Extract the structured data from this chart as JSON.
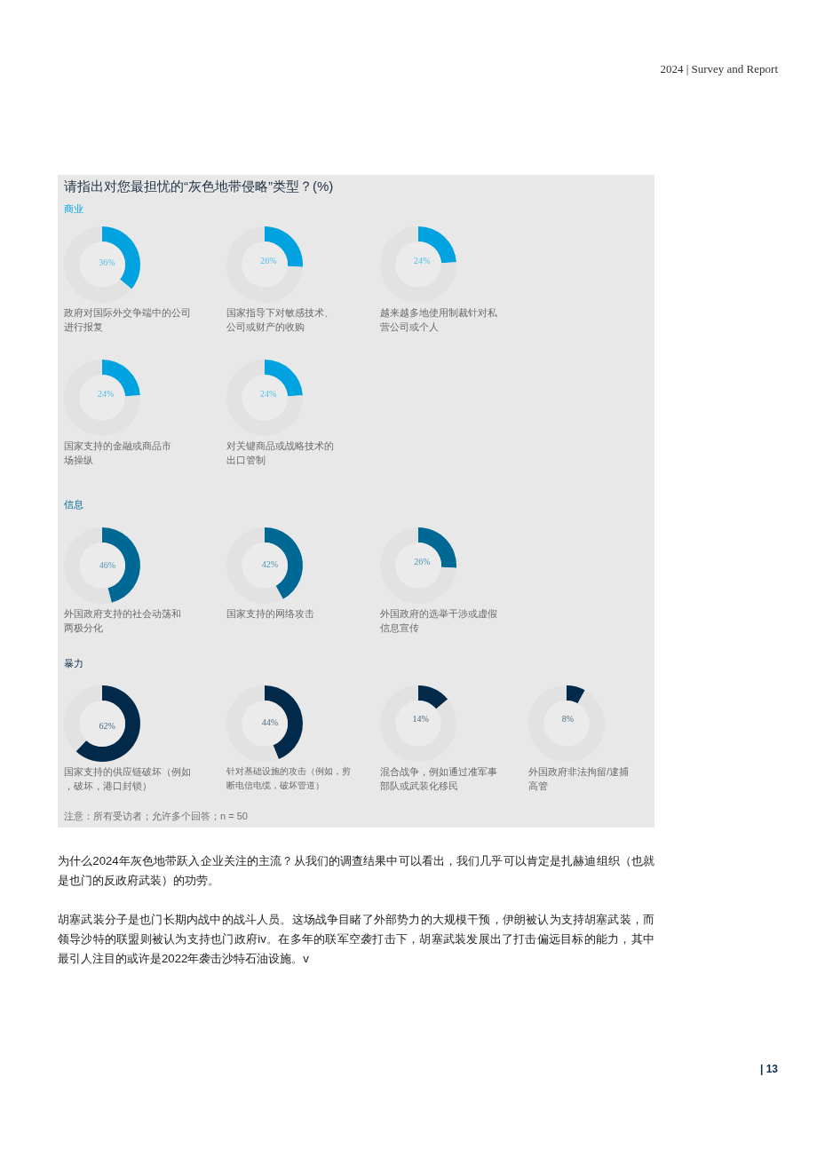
{
  "chart_data": [
    {
      "type": "other",
      "title": "请指出对您最担忧的“灰色地带侵略”类型？(%)",
      "annotations": [
        "2024 | Survey and Report",
        "商业",
        "信息",
        "暴力",
        "注意：所有受访者；允许多个回答；n = 50",
        "为什么2024年灰色地带跃入企业关注的主流？从我们的调查结果中可以看出，我们几乎可以肯定是扎赫迪组织（也就是也门的反政府武装）的功劳。",
        "胡塞武装分子是也门长期内战中的战斗人员。这场战争目睹了外部势力的大规模干预，伊朗被认为支持胡塞武装，而领导沙特的联盟则被认为支持也门政府iv。在多年的联军空袭打击下，胡塞武装发展出了打击偏远目标的能力，其中最引人注目的或许是2022年袭击沙特石油设施。v",
        "| 13"
      ]
    },
    {
      "type": "donut",
      "title": "政府对国际外交争端中的公司进行报复",
      "categories": [
        null,
        null
      ],
      "values": [
        36,
        64
      ],
      "colors": [
        "#00a3e0",
        "#e2e2e2"
      ],
      "value_labels": [
        "36%",
        null
      ]
    },
    {
      "type": "donut",
      "title": "国家指导下对敏感技术、公司或财产的收购",
      "categories": [
        null,
        null
      ],
      "values": [
        26,
        74
      ],
      "colors": [
        "#00a3e0",
        "#e2e2e2"
      ],
      "value_labels": [
        "26%",
        null
      ]
    },
    {
      "type": "donut",
      "title": "越来越多地使用制裁针对私营公司或个人",
      "categories": [
        null,
        null
      ],
      "values": [
        24,
        76
      ],
      "colors": [
        "#00a3e0",
        "#e2e2e2"
      ],
      "value_labels": [
        "24%",
        null
      ]
    },
    {
      "type": "donut",
      "title": "国家支持的金融或商品市场操纵",
      "categories": [
        null,
        null
      ],
      "values": [
        24,
        76
      ],
      "colors": [
        "#00a3e0",
        "#e2e2e2"
      ],
      "value_labels": [
        "24%",
        null
      ]
    },
    {
      "type": "donut",
      "title": "对关键商品或战略技术的出口管制",
      "categories": [
        null,
        null
      ],
      "values": [
        24,
        76
      ],
      "colors": [
        "#00a3e0",
        "#e2e2e2"
      ],
      "value_labels": [
        "24%",
        null
      ]
    },
    {
      "type": "donut",
      "title": "外国政府支持的社会动荡和两极分化",
      "categories": [
        null,
        null
      ],
      "values": [
        46,
        54
      ],
      "colors": [
        "#006894",
        "#e2e2e2"
      ],
      "value_labels": [
        "46%",
        null
      ]
    },
    {
      "type": "donut",
      "title": "国家支持的网络攻击",
      "categories": [
        null,
        null
      ],
      "values": [
        42,
        58
      ],
      "colors": [
        "#006894",
        "#e2e2e2"
      ],
      "value_labels": [
        "42%",
        null
      ]
    },
    {
      "type": "donut",
      "title": "外国政府的选举干涉或虚假信息宣传",
      "categories": [
        null,
        null
      ],
      "values": [
        26,
        74
      ],
      "colors": [
        "#006894",
        "#e2e2e2"
      ],
      "value_labels": [
        "26%",
        null
      ]
    },
    {
      "type": "donut",
      "title": "国家支持的供应链破坏（例如，破坏，港口封锁）",
      "categories": [
        null,
        null
      ],
      "values": [
        62,
        38
      ],
      "colors": [
        "#012a4a",
        "#e2e2e2"
      ],
      "value_labels": [
        "62%",
        null
      ]
    },
    {
      "type": "donut",
      "title": "针对基础设施的攻击（例如，剪断电信电缆，破坏管道）",
      "categories": [
        null,
        null
      ],
      "values": [
        44,
        56
      ],
      "colors": [
        "#012a4a",
        "#e2e2e2"
      ],
      "value_labels": [
        "44%",
        null
      ]
    },
    {
      "type": "donut",
      "title": "混合战争，例如通过准军事部队或武装化移民",
      "categories": [
        null,
        null
      ],
      "values": [
        14,
        86
      ],
      "colors": [
        "#012a4a",
        "#e2e2e2"
      ],
      "value_labels": [
        "14%",
        null
      ]
    },
    {
      "type": "donut",
      "title": "外国政府非法拘留/逮捕高管",
      "categories": [
        null,
        null
      ],
      "values": [
        8,
        92
      ],
      "colors": [
        "#012a4a",
        "#e2e2e2"
      ],
      "value_labels": [
        "8%",
        null
      ]
    }
  ]
}
